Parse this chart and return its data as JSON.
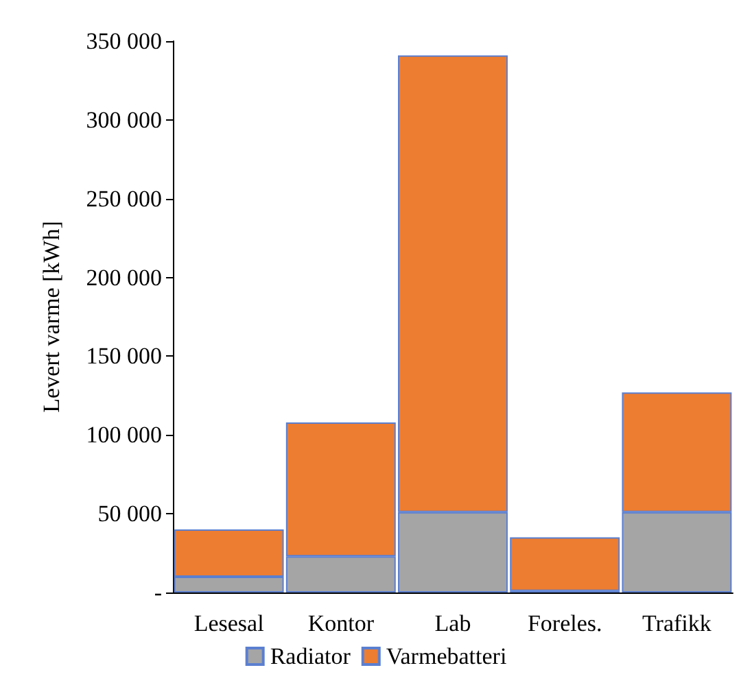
{
  "chart_data": {
    "type": "bar",
    "stacked": true,
    "ylabel": "Levert varme [kWh]",
    "categories": [
      "Lesesal",
      "Kontor",
      "Lab",
      "Foreles.",
      "Trafikk"
    ],
    "series": [
      {
        "name": "Radiator",
        "color": "#a5a5a5",
        "values": [
          10000,
          23000,
          51000,
          1000,
          51000
        ]
      },
      {
        "name": "Varmebatteri",
        "color": "#ed7d31",
        "values": [
          30000,
          85000,
          290000,
          34000,
          76000
        ]
      }
    ],
    "ylim": [
      0,
      350000
    ],
    "yticks": [
      {
        "value": 0,
        "label": "-"
      },
      {
        "value": 50000,
        "label": "50 000"
      },
      {
        "value": 100000,
        "label": "100 000"
      },
      {
        "value": 150000,
        "label": "150 000"
      },
      {
        "value": 200000,
        "label": "200 000"
      },
      {
        "value": 250000,
        "label": "250 000"
      },
      {
        "value": 300000,
        "label": "300 000"
      },
      {
        "value": 350000,
        "label": "350 000"
      }
    ],
    "grid": false,
    "legend": "bottom"
  }
}
